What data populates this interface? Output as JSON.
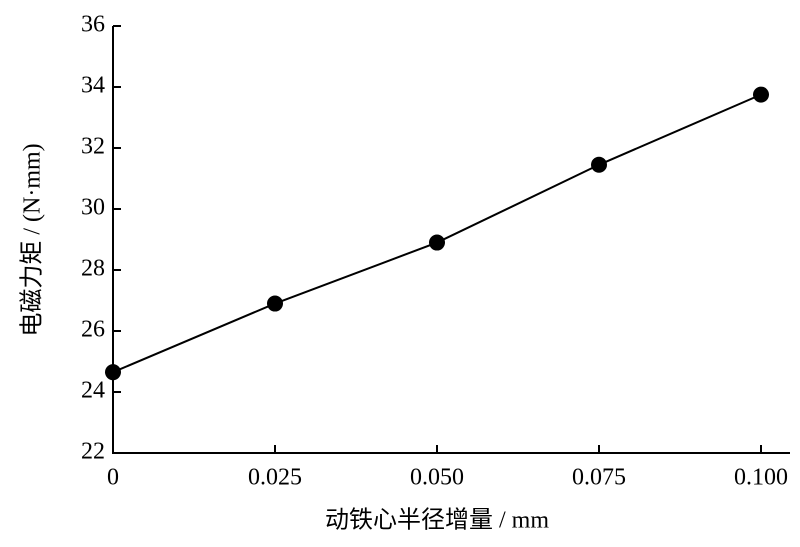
{
  "chart_data": {
    "type": "line",
    "xlabel": "动铁心半径增量 / mm",
    "ylabel": "电磁力矩 / (N·mm)",
    "x": [
      0,
      0.025,
      0.05,
      0.075,
      0.1
    ],
    "series": [
      {
        "color": "#000000",
        "values": [
          24.65,
          26.9,
          28.9,
          31.45,
          33.75
        ]
      }
    ],
    "xlim": [
      0,
      0.1
    ],
    "ylim": [
      22,
      36
    ],
    "xticks": [
      0,
      0.025,
      {
        "value": 0.05,
        "label": "0.050"
      },
      0.075,
      {
        "value": 0.1,
        "label": "0.100"
      }
    ],
    "yticks": [
      22,
      24,
      26,
      28,
      30,
      32,
      34,
      36
    ],
    "grid": false
  }
}
